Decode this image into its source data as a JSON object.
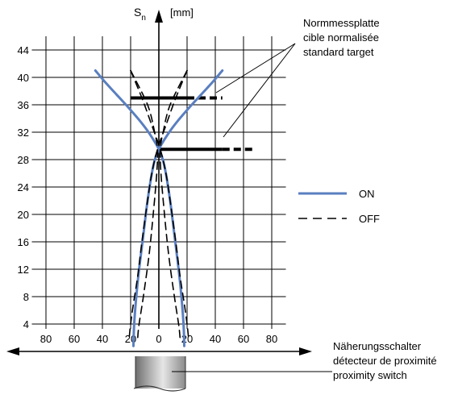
{
  "chart_data": {
    "type": "line",
    "y_axis": {
      "symbol": "S",
      "subscript": "n",
      "unit": "[mm]",
      "ticks": [
        4,
        8,
        12,
        16,
        20,
        24,
        28,
        32,
        36,
        40,
        44
      ],
      "range": [
        4,
        46
      ]
    },
    "x_axis": {
      "tick_labels": [
        "80",
        "60",
        "40",
        "20",
        "0",
        "20",
        "40",
        "60",
        "80"
      ],
      "ticks": [
        -80,
        -60,
        -40,
        -20,
        0,
        20,
        40,
        60,
        80
      ],
      "range": [
        -90,
        90
      ]
    },
    "grid": true,
    "series": [
      {
        "name": "ON",
        "color": "#5a7fc0",
        "style": "solid",
        "curves": [
          [
            [
              -45,
              41
            ],
            [
              -38,
              39.3
            ],
            [
              -30,
              37.5
            ],
            [
              -22,
              35.7
            ],
            [
              -14,
              33.8
            ],
            [
              -7,
              31.9
            ],
            [
              0,
              29.5
            ],
            [
              4,
              27
            ],
            [
              8,
              22
            ],
            [
              11,
              17
            ],
            [
              14,
              12
            ],
            [
              16,
              8
            ],
            [
              17.5,
              4
            ],
            [
              18,
              0.8
            ]
          ],
          [
            [
              45,
              41
            ],
            [
              38,
              39.3
            ],
            [
              30,
              37.5
            ],
            [
              22,
              35.7
            ],
            [
              14,
              33.8
            ],
            [
              7,
              31.9
            ],
            [
              0,
              29.5
            ],
            [
              -4,
              27
            ],
            [
              -8,
              22
            ],
            [
              -11,
              17
            ],
            [
              -14,
              12
            ],
            [
              -16,
              8
            ],
            [
              -17.5,
              4
            ],
            [
              -18,
              0.8
            ]
          ]
        ]
      },
      {
        "name": "OFF",
        "color": "#000000",
        "style": "dashed",
        "curves": [
          [
            [
              -20,
              41
            ],
            [
              -12,
              37
            ],
            [
              -5,
              33
            ],
            [
              1,
              29.5
            ],
            [
              5,
              26
            ],
            [
              8,
              22
            ],
            [
              12,
              16
            ],
            [
              15,
              11
            ],
            [
              18,
              7
            ],
            [
              20,
              4
            ],
            [
              21,
              2
            ]
          ],
          [
            [
              20,
              41
            ],
            [
              12,
              37
            ],
            [
              5,
              33
            ],
            [
              -1,
              29.5
            ],
            [
              -5,
              26
            ],
            [
              -8,
              22
            ],
            [
              -12,
              16
            ],
            [
              -15,
              11
            ],
            [
              -18,
              7
            ],
            [
              -20,
              4
            ],
            [
              -21,
              2
            ]
          ],
          [
            [
              -20,
              41
            ],
            [
              -8,
              36
            ],
            [
              -3,
              32
            ],
            [
              -1,
              29.5
            ],
            [
              -1.5,
              26
            ],
            [
              -4,
              20
            ],
            [
              -7,
              14
            ],
            [
              -11,
              8
            ],
            [
              -14,
              4
            ],
            [
              -15,
              2
            ]
          ],
          [
            [
              20,
              41
            ],
            [
              8,
              36
            ],
            [
              3,
              32
            ],
            [
              1,
              29.5
            ],
            [
              1.5,
              26
            ],
            [
              4,
              20
            ],
            [
              7,
              14
            ],
            [
              11,
              8
            ],
            [
              14,
              4
            ],
            [
              15,
              2
            ]
          ]
        ]
      }
    ],
    "targets": [
      {
        "y": 37,
        "x_from": -20,
        "x_solid_to": 20,
        "x_dash_to": 45
      },
      {
        "y": 29.5,
        "x_from": 0,
        "x_solid_to": 45,
        "x_dash_to": 67
      }
    ],
    "legend": [
      {
        "label": "ON",
        "style": "solid",
        "color": "#5a7fc0"
      },
      {
        "label": "OFF",
        "style": "dashed",
        "color": "#000000"
      }
    ]
  },
  "annotations": {
    "target_label": [
      "Normmessplatte",
      "cible normalisée",
      "standard target"
    ],
    "switch_label": [
      "Näherungsschalter",
      "détecteur de proximité",
      "proximity switch"
    ]
  }
}
